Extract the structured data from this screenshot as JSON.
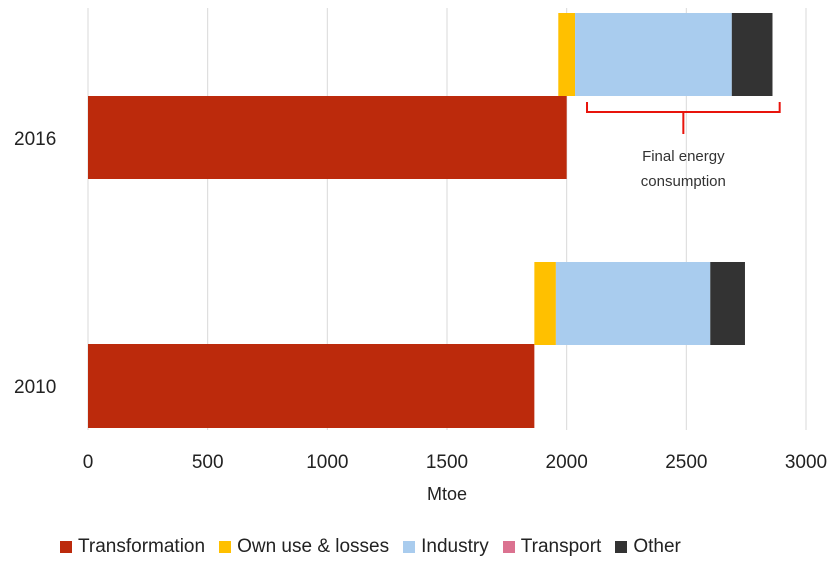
{
  "chart_data": {
    "type": "bar",
    "orientation": "horizontal",
    "xlabel": "Mtoe",
    "xlim": [
      0,
      3000
    ],
    "xticks": [
      "0",
      "500",
      "1000",
      "1500",
      "2000",
      "2500",
      "3000"
    ],
    "grid": "vertical",
    "legend_position": "bottom",
    "categories": [
      "2016",
      "2010"
    ],
    "series": [
      {
        "name": "Transformation",
        "color": "#BC2A0C",
        "group": "transformation",
        "values": [
          2000,
          1865
        ]
      },
      {
        "name": "Own use & losses",
        "color": "#FFC000",
        "group": "final",
        "values": [
          70,
          90
        ]
      },
      {
        "name": "Industry",
        "color": "#A9CCEE",
        "group": "final",
        "values": [
          655,
          645
        ]
      },
      {
        "name": "Transport",
        "color": "#DB7290",
        "group": "final",
        "values": [
          0,
          0
        ]
      },
      {
        "name": "Other",
        "color": "#333333",
        "group": "final",
        "values": [
          170,
          145
        ]
      }
    ],
    "final_offset": [
      1965,
      1865
    ],
    "annotation": {
      "lines": [
        "Final energy",
        "consumption"
      ],
      "bracket_color": "#E8140C",
      "bracket_from": 2085,
      "bracket_to": 2890,
      "category": "2016"
    }
  }
}
